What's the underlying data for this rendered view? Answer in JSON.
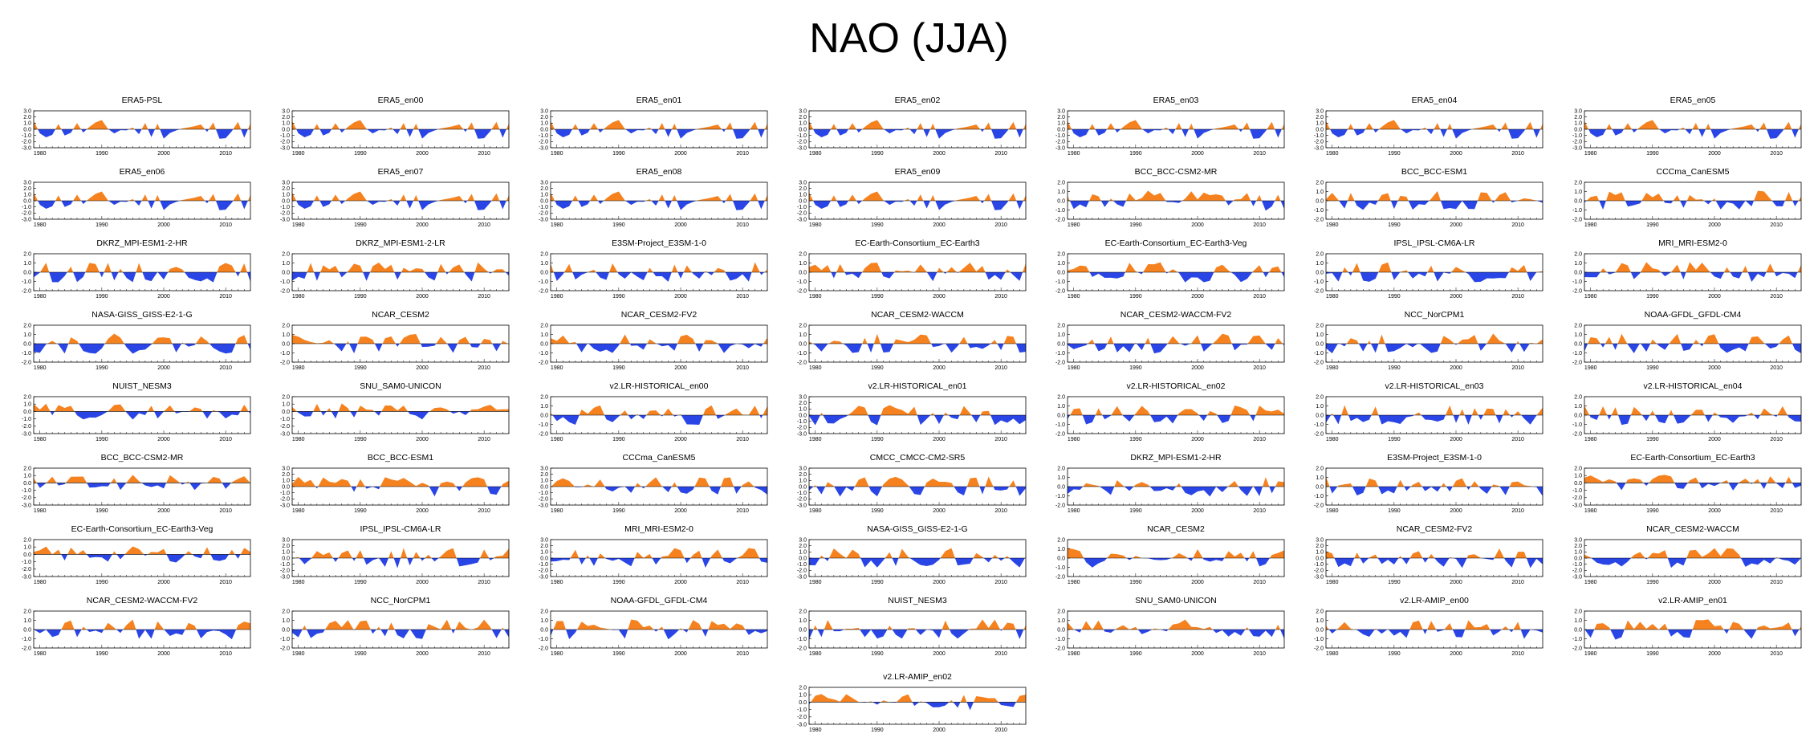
{
  "title": "NAO (JJA)",
  "colors": {
    "positive": "#f5821f",
    "negative": "#2a45e6",
    "axis": "#000000"
  },
  "chart_data": {
    "type": "area",
    "xlabel": "",
    "ylabel": "",
    "x_range": [
      1979,
      2014
    ],
    "x_ticks": [
      "1980",
      "1990",
      "2000",
      "2010"
    ],
    "panels": [
      {
        "title": "ERA5-PSL",
        "y_ticks": [
          "3.0",
          "2.0",
          "1.0",
          "0.0",
          "-1.0",
          "-2.0",
          "-3.0"
        ],
        "ylim": [
          -3,
          3
        ],
        "seed": 11
      },
      {
        "title": "ERA5_en00",
        "y_ticks": [
          "3.0",
          "2.0",
          "1.0",
          "0.0",
          "-1.0",
          "-2.0",
          "-3.0"
        ],
        "ylim": [
          -3,
          3
        ],
        "seed": 11
      },
      {
        "title": "ERA5_en01",
        "y_ticks": [
          "3.0",
          "2.0",
          "1.0",
          "0.0",
          "-1.0",
          "-2.0",
          "-3.0"
        ],
        "ylim": [
          -3,
          3
        ],
        "seed": 11
      },
      {
        "title": "ERA5_en02",
        "y_ticks": [
          "3.0",
          "2.0",
          "1.0",
          "0.0",
          "-1.0",
          "-2.0",
          "-3.0"
        ],
        "ylim": [
          -3,
          3
        ],
        "seed": 11
      },
      {
        "title": "ERA5_en03",
        "y_ticks": [
          "3.0",
          "2.0",
          "1.0",
          "0.0",
          "-1.0",
          "-2.0",
          "-3.0"
        ],
        "ylim": [
          -3,
          3
        ],
        "seed": 11
      },
      {
        "title": "ERA5_en04",
        "y_ticks": [
          "3.0",
          "2.0",
          "1.0",
          "0.0",
          "-1.0",
          "-2.0",
          "-3.0"
        ],
        "ylim": [
          -3,
          3
        ],
        "seed": 11
      },
      {
        "title": "ERA5_en05",
        "y_ticks": [
          "3.0",
          "2.0",
          "1.0",
          "0.0",
          "-1.0",
          "-2.0",
          "-3.0"
        ],
        "ylim": [
          -3,
          3
        ],
        "seed": 11
      },
      {
        "title": "ERA5_en06",
        "y_ticks": [
          "3.0",
          "2.0",
          "1.0",
          "0.0",
          "-1.0",
          "-2.0",
          "-3.0"
        ],
        "ylim": [
          -3,
          3
        ],
        "seed": 11
      },
      {
        "title": "ERA5_en07",
        "y_ticks": [
          "3.0",
          "2.0",
          "1.0",
          "0.0",
          "-1.0",
          "-2.0",
          "-3.0"
        ],
        "ylim": [
          -3,
          3
        ],
        "seed": 11
      },
      {
        "title": "ERA5_en08",
        "y_ticks": [
          "3.0",
          "2.0",
          "1.0",
          "0.0",
          "-1.0",
          "-2.0",
          "-3.0"
        ],
        "ylim": [
          -3,
          3
        ],
        "seed": 11
      },
      {
        "title": "ERA5_en09",
        "y_ticks": [
          "3.0",
          "2.0",
          "1.0",
          "0.0",
          "-1.0",
          "-2.0",
          "-3.0"
        ],
        "ylim": [
          -3,
          3
        ],
        "seed": 11
      },
      {
        "title": "BCC_BCC-CSM2-MR",
        "y_ticks": [
          "2.0",
          "1.0",
          "0.0",
          "-1.0",
          "-2.0"
        ],
        "ylim": [
          -2,
          2
        ],
        "seed": 12
      },
      {
        "title": "BCC_BCC-ESM1",
        "y_ticks": [
          "2.0",
          "1.0",
          "0.0",
          "-1.0",
          "-2.0"
        ],
        "ylim": [
          -2,
          2
        ],
        "seed": 13
      },
      {
        "title": "CCCma_CanESM5",
        "y_ticks": [
          "2.0",
          "1.0",
          "0.0",
          "-1.0",
          "-2.0"
        ],
        "ylim": [
          -2,
          2
        ],
        "seed": 14
      },
      {
        "title": "DKRZ_MPI-ESM1-2-HR",
        "y_ticks": [
          "2.0",
          "1.0",
          "0.0",
          "-1.0",
          "-2.0"
        ],
        "ylim": [
          -2,
          2
        ],
        "seed": 15
      },
      {
        "title": "DKRZ_MPI-ESM1-2-LR",
        "y_ticks": [
          "2.0",
          "1.0",
          "0.0",
          "-1.0",
          "-2.0"
        ],
        "ylim": [
          -2,
          2
        ],
        "seed": 16
      },
      {
        "title": "E3SM-Project_E3SM-1-0",
        "y_ticks": [
          "2.0",
          "1.0",
          "0.0",
          "-1.0",
          "-2.0"
        ],
        "ylim": [
          -2,
          2
        ],
        "seed": 17
      },
      {
        "title": "EC-Earth-Consortium_EC-Earth3",
        "y_ticks": [
          "2.0",
          "1.0",
          "0.0",
          "-1.0",
          "-2.0"
        ],
        "ylim": [
          -2,
          2
        ],
        "seed": 18
      },
      {
        "title": "EC-Earth-Consortium_EC-Earth3-Veg",
        "y_ticks": [
          "2.0",
          "1.0",
          "0.0",
          "-1.0",
          "-2.0"
        ],
        "ylim": [
          -2,
          2
        ],
        "seed": 19
      },
      {
        "title": "IPSL_IPSL-CM6A-LR",
        "y_ticks": [
          "2.0",
          "1.0",
          "0.0",
          "-1.0",
          "-2.0"
        ],
        "ylim": [
          -2,
          2
        ],
        "seed": 20
      },
      {
        "title": "MRI_MRI-ESM2-0",
        "y_ticks": [
          "2.0",
          "1.0",
          "0.0",
          "-1.0",
          "-2.0"
        ],
        "ylim": [
          -2,
          2
        ],
        "seed": 21
      },
      {
        "title": "NASA-GISS_GISS-E2-1-G",
        "y_ticks": [
          "2.0",
          "1.0",
          "0.0",
          "-1.0",
          "-2.0"
        ],
        "ylim": [
          -2,
          2
        ],
        "seed": 22
      },
      {
        "title": "NCAR_CESM2",
        "y_ticks": [
          "2.0",
          "1.0",
          "0.0",
          "-1.0",
          "-2.0"
        ],
        "ylim": [
          -2,
          2
        ],
        "seed": 23
      },
      {
        "title": "NCAR_CESM2-FV2",
        "y_ticks": [
          "2.0",
          "1.0",
          "0.0",
          "-1.0",
          "-2.0"
        ],
        "ylim": [
          -2,
          2
        ],
        "seed": 24
      },
      {
        "title": "NCAR_CESM2-WACCM",
        "y_ticks": [
          "2.0",
          "1.0",
          "0.0",
          "-1.0",
          "-2.0"
        ],
        "ylim": [
          -2,
          2
        ],
        "seed": 25
      },
      {
        "title": "NCAR_CESM2-WACCM-FV2",
        "y_ticks": [
          "2.0",
          "1.0",
          "0.0",
          "-1.0",
          "-2.0"
        ],
        "ylim": [
          -2,
          2
        ],
        "seed": 26
      },
      {
        "title": "NCC_NorCPM1",
        "y_ticks": [
          "2.0",
          "1.0",
          "0.0",
          "-1.0",
          "-2.0"
        ],
        "ylim": [
          -2,
          2
        ],
        "seed": 27
      },
      {
        "title": "NOAA-GFDL_GFDL-CM4",
        "y_ticks": [
          "2.0",
          "1.0",
          "0.0",
          "-1.0",
          "-2.0"
        ],
        "ylim": [
          -2,
          2
        ],
        "seed": 28
      },
      {
        "title": "NUIST_NESM3",
        "y_ticks": [
          "2.0",
          "1.0",
          "0.0",
          "-1.0",
          "-2.0",
          "-3.0"
        ],
        "ylim": [
          -3,
          2
        ],
        "seed": 29
      },
      {
        "title": "SNU_SAM0-UNICON",
        "y_ticks": [
          "2.0",
          "1.0",
          "0.0",
          "-1.0",
          "-2.0",
          "-3.0"
        ],
        "ylim": [
          -3,
          2
        ],
        "seed": 30
      },
      {
        "title": "v2.LR-HISTORICAL_en00",
        "y_ticks": [
          "2.0",
          "1.0",
          "0.0",
          "-1.0",
          "-2.0"
        ],
        "ylim": [
          -2,
          2
        ],
        "seed": 31
      },
      {
        "title": "v2.LR-HISTORICAL_en01",
        "y_ticks": [
          "3.0",
          "2.0",
          "1.0",
          "0.0",
          "-1.0",
          "-2.0",
          "-3.0"
        ],
        "ylim": [
          -3,
          3
        ],
        "seed": 32
      },
      {
        "title": "v2.LR-HISTORICAL_en02",
        "y_ticks": [
          "2.0",
          "1.0",
          "0.0",
          "-1.0",
          "-2.0"
        ],
        "ylim": [
          -2,
          2
        ],
        "seed": 33
      },
      {
        "title": "v2.LR-HISTORICAL_en03",
        "y_ticks": [
          "2.0",
          "1.0",
          "0.0",
          "-1.0",
          "-2.0"
        ],
        "ylim": [
          -2,
          2
        ],
        "seed": 34
      },
      {
        "title": "v2.LR-HISTORICAL_en04",
        "y_ticks": [
          "2.0",
          "1.0",
          "0.0",
          "-1.0",
          "-2.0"
        ],
        "ylim": [
          -2,
          2
        ],
        "seed": 35
      },
      {
        "title": "BCC_BCC-CSM2-MR",
        "y_ticks": [
          "2.0",
          "1.0",
          "0.0",
          "-1.0",
          "-2.0",
          "-3.0"
        ],
        "ylim": [
          -3,
          2
        ],
        "seed": 36
      },
      {
        "title": "BCC_BCC-ESM1",
        "y_ticks": [
          "3.0",
          "2.0",
          "1.0",
          "0.0",
          "-1.0",
          "-2.0",
          "-3.0"
        ],
        "ylim": [
          -3,
          3
        ],
        "seed": 37
      },
      {
        "title": "CCCma_CanESM5",
        "y_ticks": [
          "3.0",
          "2.0",
          "1.0",
          "0.0",
          "-1.0",
          "-2.0",
          "-3.0"
        ],
        "ylim": [
          -3,
          3
        ],
        "seed": 38
      },
      {
        "title": "CMCC_CMCC-CM2-SR5",
        "y_ticks": [
          "3.0",
          "2.0",
          "1.0",
          "0.0",
          "-1.0",
          "-2.0",
          "-3.0"
        ],
        "ylim": [
          -3,
          3
        ],
        "seed": 39
      },
      {
        "title": "DKRZ_MPI-ESM1-2-HR",
        "y_ticks": [
          "2.0",
          "1.0",
          "0.0",
          "-1.0",
          "-2.0"
        ],
        "ylim": [
          -2,
          2
        ],
        "seed": 40
      },
      {
        "title": "E3SM-Project_E3SM-1-0",
        "y_ticks": [
          "2.0",
          "1.0",
          "0.0",
          "-1.0",
          "-2.0"
        ],
        "ylim": [
          -2,
          2
        ],
        "seed": 41
      },
      {
        "title": "EC-Earth-Consortium_EC-Earth3",
        "y_ticks": [
          "2.0",
          "1.0",
          "0.0",
          "-1.0",
          "-2.0",
          "-3.0"
        ],
        "ylim": [
          -3,
          2
        ],
        "seed": 42
      },
      {
        "title": "EC-Earth-Consortium_EC-Earth3-Veg",
        "y_ticks": [
          "2.0",
          "1.0",
          "0.0",
          "-1.0",
          "-2.0",
          "-3.0"
        ],
        "ylim": [
          -3,
          2
        ],
        "seed": 43
      },
      {
        "title": "IPSL_IPSL-CM6A-LR",
        "y_ticks": [
          "3.0",
          "2.0",
          "1.0",
          "0.0",
          "-1.0",
          "-2.0",
          "-3.0"
        ],
        "ylim": [
          -3,
          3
        ],
        "seed": 44
      },
      {
        "title": "MRI_MRI-ESM2-0",
        "y_ticks": [
          "3.0",
          "2.0",
          "1.0",
          "0.0",
          "-1.0",
          "-2.0",
          "-3.0"
        ],
        "ylim": [
          -3,
          3
        ],
        "seed": 45
      },
      {
        "title": "NASA-GISS_GISS-E2-1-G",
        "y_ticks": [
          "3.0",
          "2.0",
          "1.0",
          "0.0",
          "-1.0",
          "-2.0",
          "-3.0"
        ],
        "ylim": [
          -3,
          3
        ],
        "seed": 46
      },
      {
        "title": "NCAR_CESM2",
        "y_ticks": [
          "2.0",
          "1.0",
          "0.0",
          "-1.0",
          "-2.0"
        ],
        "ylim": [
          -2,
          2
        ],
        "seed": 47
      },
      {
        "title": "NCAR_CESM2-FV2",
        "y_ticks": [
          "3.0",
          "2.0",
          "1.0",
          "0.0",
          "-1.0",
          "-2.0",
          "-3.0"
        ],
        "ylim": [
          -3,
          3
        ],
        "seed": 48
      },
      {
        "title": "NCAR_CESM2-WACCM",
        "y_ticks": [
          "3.0",
          "2.0",
          "1.0",
          "0.0",
          "-1.0",
          "-2.0",
          "-3.0"
        ],
        "ylim": [
          -3,
          3
        ],
        "seed": 49
      },
      {
        "title": "NCAR_CESM2-WACCM-FV2",
        "y_ticks": [
          "2.0",
          "1.0",
          "0.0",
          "-1.0",
          "-2.0"
        ],
        "ylim": [
          -2,
          2
        ],
        "seed": 50
      },
      {
        "title": "NCC_NorCPM1",
        "y_ticks": [
          "2.0",
          "1.0",
          "0.0",
          "-1.0",
          "-2.0"
        ],
        "ylim": [
          -2,
          2
        ],
        "seed": 51
      },
      {
        "title": "NOAA-GFDL_GFDL-CM4",
        "y_ticks": [
          "2.0",
          "1.0",
          "0.0",
          "-1.0",
          "-2.0"
        ],
        "ylim": [
          -2,
          2
        ],
        "seed": 52
      },
      {
        "title": "NUIST_NESM3",
        "y_ticks": [
          "2.0",
          "1.0",
          "0.0",
          "-1.0",
          "-2.0"
        ],
        "ylim": [
          -2,
          2
        ],
        "seed": 53
      },
      {
        "title": "SNU_SAM0-UNICON",
        "y_ticks": [
          "2.0",
          "1.0",
          "0.0",
          "-1.0",
          "-2.0"
        ],
        "ylim": [
          -2,
          2
        ],
        "seed": 54
      },
      {
        "title": "v2.LR-AMIP_en00",
        "y_ticks": [
          "2.0",
          "1.0",
          "0.0",
          "-1.0",
          "-2.0"
        ],
        "ylim": [
          -2,
          2
        ],
        "seed": 55
      },
      {
        "title": "v2.LR-AMIP_en01",
        "y_ticks": [
          "2.0",
          "1.0",
          "0.0",
          "-1.0",
          "-2.0"
        ],
        "ylim": [
          -2,
          2
        ],
        "seed": 56
      },
      {
        "title": "v2.LR-AMIP_en02",
        "y_ticks": [
          "2.0",
          "1.0",
          "0.0",
          "-1.0",
          "-2.0",
          "-3.0"
        ],
        "ylim": [
          -3,
          2
        ],
        "seed": 57
      }
    ]
  }
}
